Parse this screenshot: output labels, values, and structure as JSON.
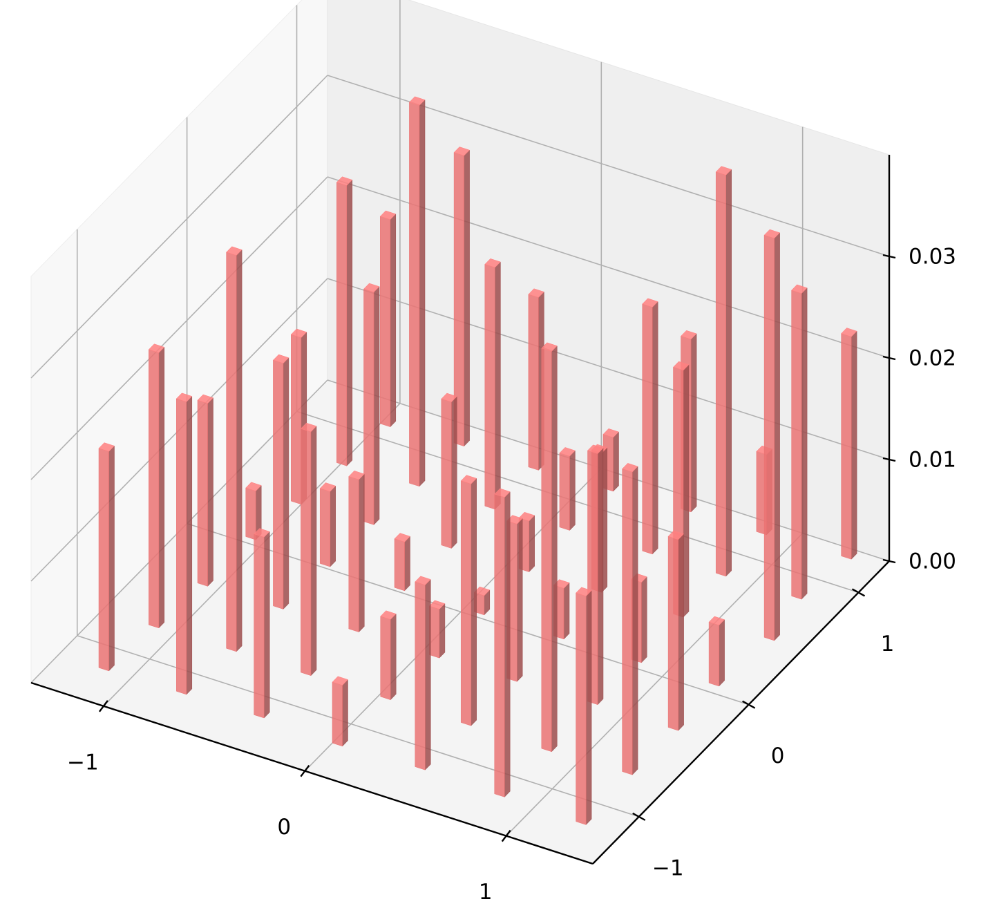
{
  "chart_data": {
    "type": "bar3d",
    "color": "#d96b6b",
    "x": [
      -1.16,
      -1.13,
      -0.78,
      -1.1,
      -0.75,
      -1.09,
      -0.4,
      -0.73,
      -1.05,
      -0.38,
      -0.71,
      -1.02,
      0.0,
      -0.36,
      -0.7,
      -1.0,
      0.01,
      -0.34,
      -0.67,
      0.4,
      0.04,
      -0.32,
      -0.65,
      0.41,
      0.05,
      -0.3,
      0.8,
      0.42,
      0.06,
      -0.28,
      0.81,
      0.44,
      0.06,
      1.21,
      0.81,
      0.41,
      0.08,
      1.2,
      0.82,
      0.46,
      1.21,
      0.81,
      0.45,
      1.2,
      0.82,
      0.82,
      1.24,
      1.19,
      1.23
    ],
    "y": [
      -1.17,
      -0.77,
      -1.16,
      -0.38,
      -0.76,
      0.04,
      -1.15,
      -0.37,
      0.38,
      -0.76,
      0.02,
      0.74,
      -1.17,
      -0.36,
      0.4,
      1.1,
      -0.75,
      0.02,
      0.76,
      -1.15,
      -0.36,
      0.41,
      1.13,
      -0.75,
      0.03,
      0.77,
      -1.16,
      -0.35,
      0.42,
      1.13,
      -0.75,
      0.04,
      0.79,
      -1.17,
      -0.33,
      0.44,
      1.15,
      -0.73,
      0.05,
      0.81,
      -0.33,
      0.45,
      1.18,
      0.06,
      0.82,
      1.19,
      0.49,
      0.83,
      1.21
    ],
    "z": [
      0.0216,
      0.0271,
      0.0288,
      0.018,
      0.039,
      0.0048,
      0.0178,
      0.0242,
      0.0164,
      0.024,
      0.0074,
      0.0276,
      0.006,
      0.015,
      0.0229,
      0.0204,
      0.0079,
      0.0048,
      0.0375,
      0.0182,
      0.0048,
      0.0144,
      0.0286,
      0.0238,
      0.0019,
      0.0238,
      0.0295,
      0.0155,
      0.005,
      0.017,
      0.0394,
      0.005,
      0.0073,
      0.0225,
      0.0247,
      0.0137,
      0.0053,
      0.0298,
      0.0079,
      0.0243,
      0.0188,
      0.0243,
      0.017,
      0.006,
      0.0395,
      0.0079,
      0.0396,
      0.0301,
      0.0219
    ],
    "xlim": [
      -1.36,
      1.43
    ],
    "ylim": [
      -1.42,
      1.28
    ],
    "zlim": [
      0,
      0.04
    ],
    "xticks": [
      {
        "value": -1,
        "label": "−1"
      },
      0,
      1
    ],
    "yticks": [
      {
        "value": -1,
        "label": "−1"
      },
      0,
      1
    ],
    "zticks": [
      {
        "value": 0,
        "label": "0.00"
      },
      {
        "value": 0.01,
        "label": "0.01"
      },
      {
        "value": 0.02,
        "label": "0.02"
      },
      {
        "value": 0.03,
        "label": "0.03"
      }
    ],
    "grid": true
  }
}
